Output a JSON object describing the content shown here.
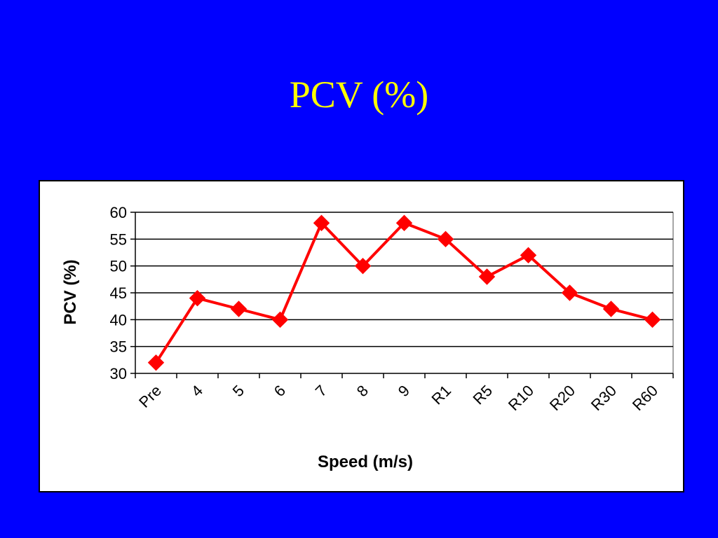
{
  "slide": {
    "title": "PCV (%)"
  },
  "colors": {
    "background": "#0000ff",
    "title": "#ffff00",
    "series": "#ff0000",
    "plot_background": "#ffffff",
    "gridline": "#000000"
  },
  "chart_data": {
    "type": "line",
    "categories": [
      "Pre",
      "4",
      "5",
      "6",
      "7",
      "8",
      "9",
      "R1",
      "R5",
      "R10",
      "R20",
      "R30",
      "R60"
    ],
    "series": [
      {
        "values": [
          32,
          44,
          42,
          40,
          58,
          50,
          58,
          55,
          48,
          52,
          45,
          42,
          40
        ]
      }
    ],
    "xlabel": "Speed (m/s)",
    "ylabel": "PCV (%)",
    "ylim": [
      30,
      60
    ],
    "yticks": [
      "30",
      "35",
      "40",
      "45",
      "50",
      "55",
      "60"
    ],
    "marker": "diamond",
    "grid": "horizontal",
    "legend": "none"
  }
}
